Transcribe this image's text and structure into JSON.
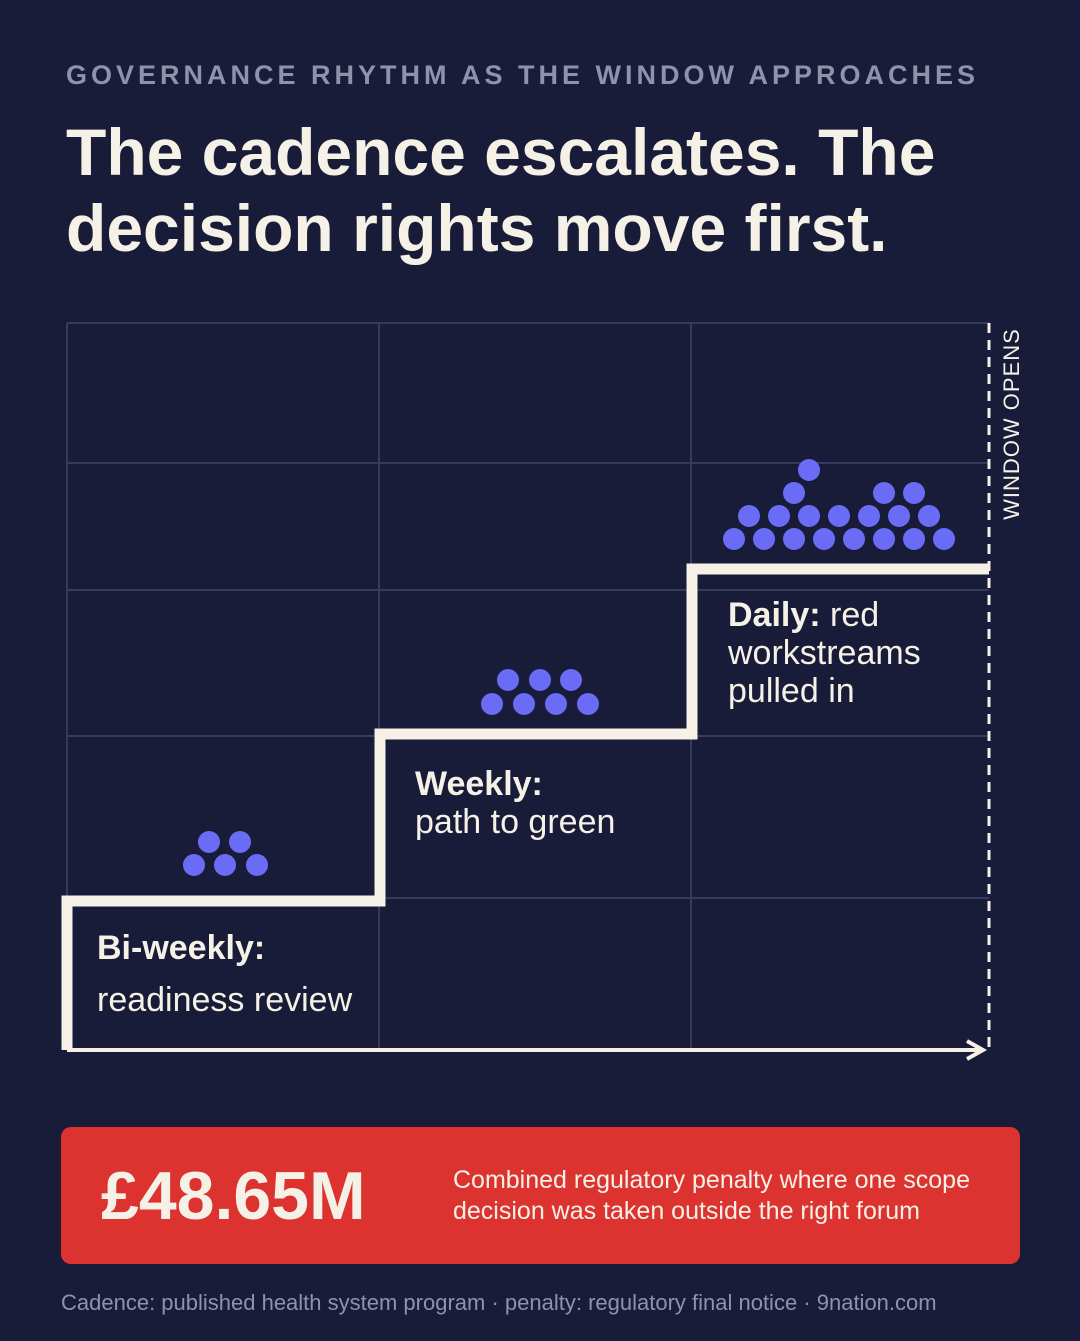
{
  "header": {
    "kicker": "GOVERNANCE RHYTHM AS THE WINDOW APPROACHES",
    "headline": "The cadence escalates. The decision rights move first."
  },
  "diagram": {
    "marker_label": "WINDOW OPENS",
    "steps": [
      {
        "title": "Bi-weekly:",
        "description": "readiness review",
        "dot_count": 5
      },
      {
        "title": "Weekly:",
        "description": "path to green",
        "dot_count": 7
      },
      {
        "title": "Daily:",
        "description": "red workstreams pulled in",
        "dot_count": 16
      }
    ],
    "colors": {
      "background": "#181c39",
      "grid": "#363a5c",
      "line": "#f6f1e6",
      "dots": "#6a6cf6"
    }
  },
  "callout": {
    "amount": "£48.65M",
    "description": "Combined regulatory penalty where one scope decision was taken outside the right forum",
    "color": "#dc3330"
  },
  "footer": {
    "source": "Cadence: published health system program · penalty: regulatory final notice · 9nation.com"
  }
}
